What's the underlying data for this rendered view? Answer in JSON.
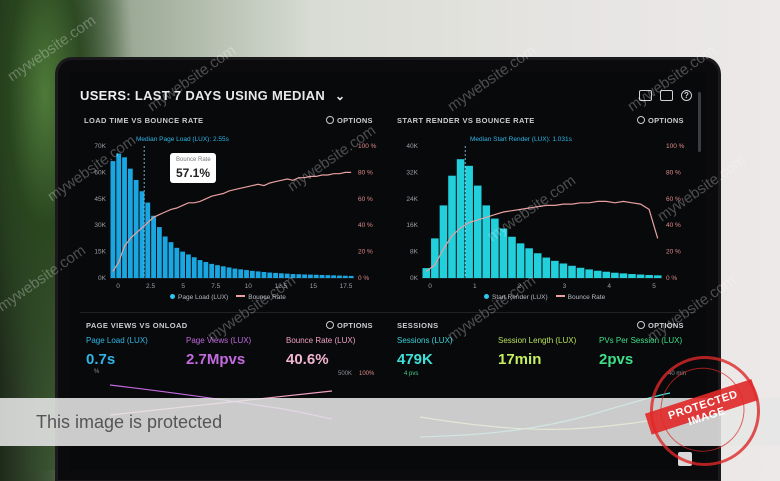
{
  "header": {
    "title_prefix": "USERS:",
    "title_main": "LAST 7 DAYS USING MEDIAN"
  },
  "options_label": "OPTIONS",
  "panels": {
    "load_time": {
      "title": "LOAD TIME VS BOUNCE RATE",
      "median_label": "Median Page Load (LUX): 2.55s",
      "callout_label": "Bounce Rate",
      "callout_value": "57.1%",
      "legend_a": "Page Load (LUX)",
      "legend_b": "Bounce Rate"
    },
    "start_render": {
      "title": "START RENDER VS BOUNCE RATE",
      "median_label": "Median Start Render (LUX): 1.031s",
      "legend_a": "Start Render (LUX)",
      "legend_b": "Bounce Rate"
    },
    "page_views": {
      "title": "PAGE VIEWS VS ONLOAD"
    },
    "sessions": {
      "title": "SESSIONS"
    }
  },
  "metrics": [
    {
      "label": "Page Load (LUX)",
      "value": "0.7s",
      "label_color": "#2fb6e6",
      "value_color": "#2fb6e6"
    },
    {
      "label": "Page Views (LUX)",
      "value": "2.7Mpvs",
      "label_color": "#c46ae0",
      "value_color": "#c46ae0"
    },
    {
      "label": "Bounce Rate (LUX)",
      "value": "40.6%",
      "label_color": "#f0a0c0",
      "value_color": "#f2b6d0"
    },
    {
      "label": "Sessions (LUX)",
      "value": "479K",
      "label_color": "#37d3d9",
      "value_color": "#3fe0d8"
    },
    {
      "label": "Session Length (LUX)",
      "value": "17min",
      "label_color": "#b8e05a",
      "value_color": "#c6f060"
    },
    {
      "label": "PVs Per Session (LUX)",
      "value": "2pvs",
      "label_color": "#3ee08a",
      "value_color": "#3ee08a"
    }
  ],
  "small_texts": {
    "pl_unit": "%",
    "sess_sub": "4 pvs",
    "right_500k": "500K",
    "right_100": "100%",
    "right_40min": "40 min"
  },
  "protect_banner": "This image is protected",
  "stamp_text": "PROTECTED IMAGE",
  "watermark": "mywebsite.com",
  "chart_data": [
    {
      "type": "bar",
      "title": "LOAD TIME VS BOUNCE RATE",
      "y_left_ticks": [
        "70K",
        "60K",
        "45K",
        "30K",
        "15K",
        "0K"
      ],
      "y_right_ticks": [
        "100 %",
        "80 %",
        "60 %",
        "40 %",
        "20 %",
        "0 %"
      ],
      "x_ticks": [
        "0",
        "2.5",
        "5",
        "7.5",
        "10",
        "12.5",
        "15",
        "17.5"
      ],
      "ylim": [
        0,
        70000
      ],
      "series": [
        {
          "name": "Page Load (LUX)",
          "values": [
            62000,
            66000,
            64000,
            58000,
            52000,
            46000,
            40000,
            33000,
            27000,
            22000,
            19000,
            16000,
            14000,
            12500,
            11000,
            9500,
            8500,
            7500,
            6800,
            6200,
            5600,
            5000,
            4600,
            4200,
            3800,
            3500,
            3200,
            2900,
            2700,
            2500,
            2300,
            2100,
            2000,
            1900,
            1800,
            1700,
            1600,
            1500,
            1400,
            1300,
            1200,
            1100
          ]
        },
        {
          "name": "Bounce Rate",
          "values": [
            5,
            12,
            24,
            30,
            34,
            38,
            42,
            46,
            48,
            50,
            52,
            53,
            55,
            57,
            57,
            58,
            60,
            62,
            63,
            64,
            66,
            67,
            68,
            69,
            70,
            71,
            70,
            72,
            73,
            74,
            75,
            74,
            76,
            76,
            77,
            77,
            78,
            78,
            79,
            79,
            80,
            80
          ]
        }
      ]
    },
    {
      "type": "bar",
      "title": "START RENDER VS BOUNCE RATE",
      "y_left_ticks": [
        "40K",
        "32K",
        "24K",
        "16K",
        "8K",
        "0K"
      ],
      "y_right_ticks": [
        "100 %",
        "80 %",
        "60 %",
        "40 %",
        "20 %",
        "0 %"
      ],
      "x_ticks": [
        "0",
        "1",
        "2",
        "3",
        "4",
        "5"
      ],
      "ylim": [
        0,
        40000
      ],
      "series": [
        {
          "name": "Start Render (LUX)",
          "values": [
            3000,
            12000,
            22000,
            31000,
            36000,
            34000,
            28000,
            22000,
            18000,
            15000,
            12500,
            10500,
            9000,
            7500,
            6200,
            5200,
            4400,
            3700,
            3100,
            2600,
            2200,
            1900,
            1600,
            1400,
            1200,
            1050,
            900,
            800
          ]
        },
        {
          "name": "Bounce Rate",
          "values": [
            5,
            10,
            22,
            32,
            38,
            42,
            44,
            46,
            48,
            50,
            51,
            52,
            53,
            54,
            55,
            55,
            56,
            56,
            57,
            57,
            58,
            58,
            57,
            58,
            57,
            56,
            52,
            30
          ]
        }
      ]
    }
  ]
}
